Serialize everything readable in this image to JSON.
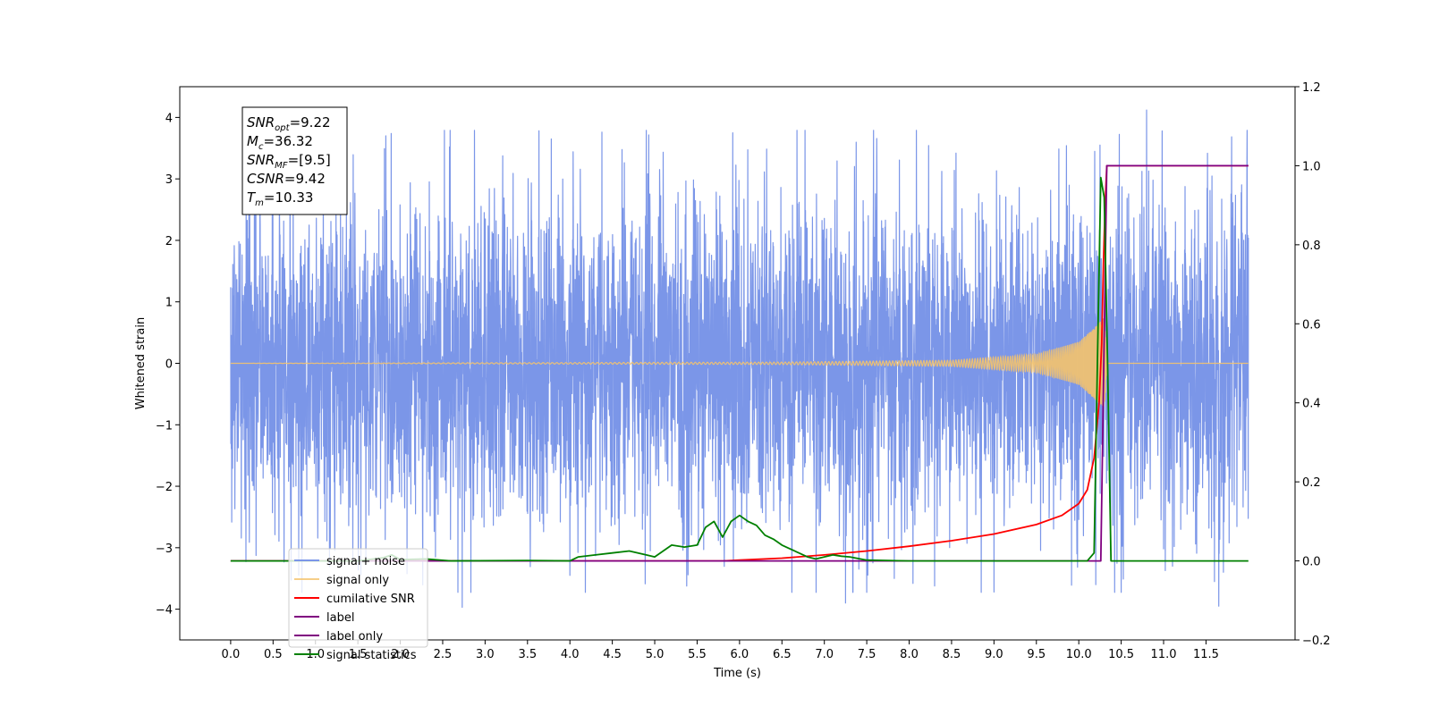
{
  "chart_data": {
    "type": "line",
    "title": "",
    "xlabel": "Time (s)",
    "ylabel": "Whitened strain",
    "y2label": "",
    "xlim": [
      -0.6,
      12.55
    ],
    "ylim": [
      -4.5,
      4.5
    ],
    "y2lim": [
      -0.2,
      1.2
    ],
    "xticks": [
      0.0,
      0.5,
      1.0,
      1.5,
      2.0,
      2.5,
      3.0,
      3.5,
      4.0,
      4.5,
      5.0,
      5.5,
      6.0,
      6.5,
      7.0,
      7.5,
      8.0,
      8.5,
      9.0,
      9.5,
      10.0,
      10.5,
      11.0,
      11.5
    ],
    "xtick_labels": [
      "0.0",
      "0.5",
      "1.0",
      "1.5",
      "2.0",
      "2.5",
      "3.0",
      "3.5",
      "4.0",
      "4.5",
      "5.0",
      "5.5",
      "6.0",
      "6.5",
      "7.0",
      "7.5",
      "8.0",
      "8.5",
      "9.0",
      "9.5",
      "10.0",
      "10.5",
      "11.0",
      "11.5"
    ],
    "yticks": [
      4,
      3,
      2,
      1,
      0,
      -1,
      -2,
      -3,
      -4
    ],
    "ytick_labels": [
      "4",
      "3",
      "2",
      "1",
      "0",
      "−1",
      "−2",
      "−3",
      "−4"
    ],
    "y2ticks": [
      1.2,
      1.0,
      0.8,
      0.6,
      0.4,
      0.2,
      0.0,
      -0.2
    ],
    "y2tick_labels": [
      "1.2",
      "1.0",
      "0.8",
      "0.6",
      "0.4",
      "0.2",
      "0.0",
      "−0.2"
    ],
    "grid": false,
    "legend_position": "lower-left",
    "series": [
      {
        "name": "signal+ noise",
        "color": "#7b96e8",
        "axis": "left",
        "kind": "noise",
        "x_range": [
          0.0,
          12.0
        ],
        "typical_range": [
          -2.4,
          2.4
        ],
        "extreme_range": [
          -4.05,
          4.12
        ],
        "notable_points": [
          {
            "x": 1.83,
            "y": 3.7
          },
          {
            "x": 3.78,
            "y": 3.65
          },
          {
            "x": 5.92,
            "y": 3.75
          },
          {
            "x": 10.25,
            "y": 3.55
          },
          {
            "x": 10.8,
            "y": 4.12
          },
          {
            "x": 2.73,
            "y": -3.97
          },
          {
            "x": 7.25,
            "y": -3.9
          },
          {
            "x": 9.0,
            "y": -3.72
          },
          {
            "x": 11.65,
            "y": -3.95
          },
          {
            "x": 11.6,
            "y": -3.55
          },
          {
            "x": 10.2,
            "y": -3.6
          },
          {
            "x": 4.0,
            "y": -3.45
          }
        ]
      },
      {
        "name": "signal only",
        "color": "#f5c36b",
        "axis": "left",
        "kind": "chirp",
        "x_range": [
          0.0,
          12.0
        ],
        "merger_time": 10.33,
        "peak_amplitude": 0.75,
        "points": [
          [
            0.0,
            0.0
          ],
          [
            6.5,
            0.02
          ],
          [
            8.5,
            0.05
          ],
          [
            9.5,
            0.15
          ],
          [
            10.0,
            0.35
          ],
          [
            10.2,
            0.6
          ],
          [
            10.3,
            0.75
          ],
          [
            10.34,
            0.0
          ],
          [
            12.0,
            0.0
          ]
        ]
      },
      {
        "name": "cumilative SNR",
        "color": "#ff0000",
        "axis": "right",
        "points": [
          [
            0.0,
            0.0
          ],
          [
            5.8,
            0.0
          ],
          [
            6.0,
            0.002
          ],
          [
            6.5,
            0.007
          ],
          [
            7.0,
            0.015
          ],
          [
            7.5,
            0.025
          ],
          [
            8.0,
            0.037
          ],
          [
            8.5,
            0.051
          ],
          [
            9.0,
            0.068
          ],
          [
            9.5,
            0.092
          ],
          [
            9.8,
            0.115
          ],
          [
            10.0,
            0.145
          ],
          [
            10.1,
            0.18
          ],
          [
            10.18,
            0.26
          ],
          [
            10.24,
            0.4
          ],
          [
            10.27,
            0.55
          ],
          [
            10.29,
            0.75
          ],
          [
            10.31,
            0.9
          ],
          [
            10.33,
            1.0
          ],
          [
            12.0,
            1.0
          ]
        ]
      },
      {
        "name": "label",
        "color": "#800080",
        "axis": "right",
        "points": [
          [
            0.0,
            0.0
          ],
          [
            10.26,
            0.0
          ],
          [
            10.33,
            1.0
          ],
          [
            12.0,
            1.0
          ]
        ]
      },
      {
        "name": "label only",
        "color": "#800080",
        "axis": "right",
        "points": []
      },
      {
        "name": "signal statistics",
        "color": "#008000",
        "axis": "right",
        "points": [
          [
            0.0,
            0.0
          ],
          [
            1.5,
            0.0
          ],
          [
            1.8,
            0.008
          ],
          [
            1.9,
            0.015
          ],
          [
            2.0,
            0.003
          ],
          [
            2.3,
            0.005
          ],
          [
            2.6,
            0.0
          ],
          [
            3.5,
            0.001
          ],
          [
            4.0,
            0.0
          ],
          [
            4.1,
            0.01
          ],
          [
            4.3,
            0.015
          ],
          [
            4.5,
            0.02
          ],
          [
            4.7,
            0.025
          ],
          [
            4.9,
            0.015
          ],
          [
            5.0,
            0.01
          ],
          [
            5.1,
            0.025
          ],
          [
            5.2,
            0.04
          ],
          [
            5.35,
            0.035
          ],
          [
            5.5,
            0.04
          ],
          [
            5.6,
            0.085
          ],
          [
            5.7,
            0.1
          ],
          [
            5.8,
            0.06
          ],
          [
            5.9,
            0.1
          ],
          [
            6.0,
            0.115
          ],
          [
            6.1,
            0.1
          ],
          [
            6.2,
            0.09
          ],
          [
            6.3,
            0.065
          ],
          [
            6.4,
            0.055
          ],
          [
            6.5,
            0.04
          ],
          [
            6.6,
            0.03
          ],
          [
            6.7,
            0.02
          ],
          [
            6.8,
            0.01
          ],
          [
            6.9,
            0.005
          ],
          [
            7.0,
            0.01
          ],
          [
            7.1,
            0.015
          ],
          [
            7.2,
            0.012
          ],
          [
            7.3,
            0.01
          ],
          [
            7.5,
            0.002
          ],
          [
            8.0,
            0.0
          ],
          [
            10.1,
            0.0
          ],
          [
            10.18,
            0.02
          ],
          [
            10.22,
            0.5
          ],
          [
            10.26,
            0.97
          ],
          [
            10.3,
            0.92
          ],
          [
            10.34,
            0.5
          ],
          [
            10.38,
            0.0
          ],
          [
            12.0,
            0.0
          ]
        ]
      }
    ],
    "annotation": {
      "lines": [
        {
          "base": "SNR",
          "sub": "opt",
          "value": "=9.22"
        },
        {
          "base": "M",
          "sub": "c",
          "value": "=36.32"
        },
        {
          "base": "SNR",
          "sub": "MF",
          "value": "=[9.5]"
        },
        {
          "base": "CSNR",
          "sub": "",
          "value": "=9.42"
        },
        {
          "base": "T",
          "sub": "m",
          "value": "=10.33"
        }
      ]
    }
  }
}
